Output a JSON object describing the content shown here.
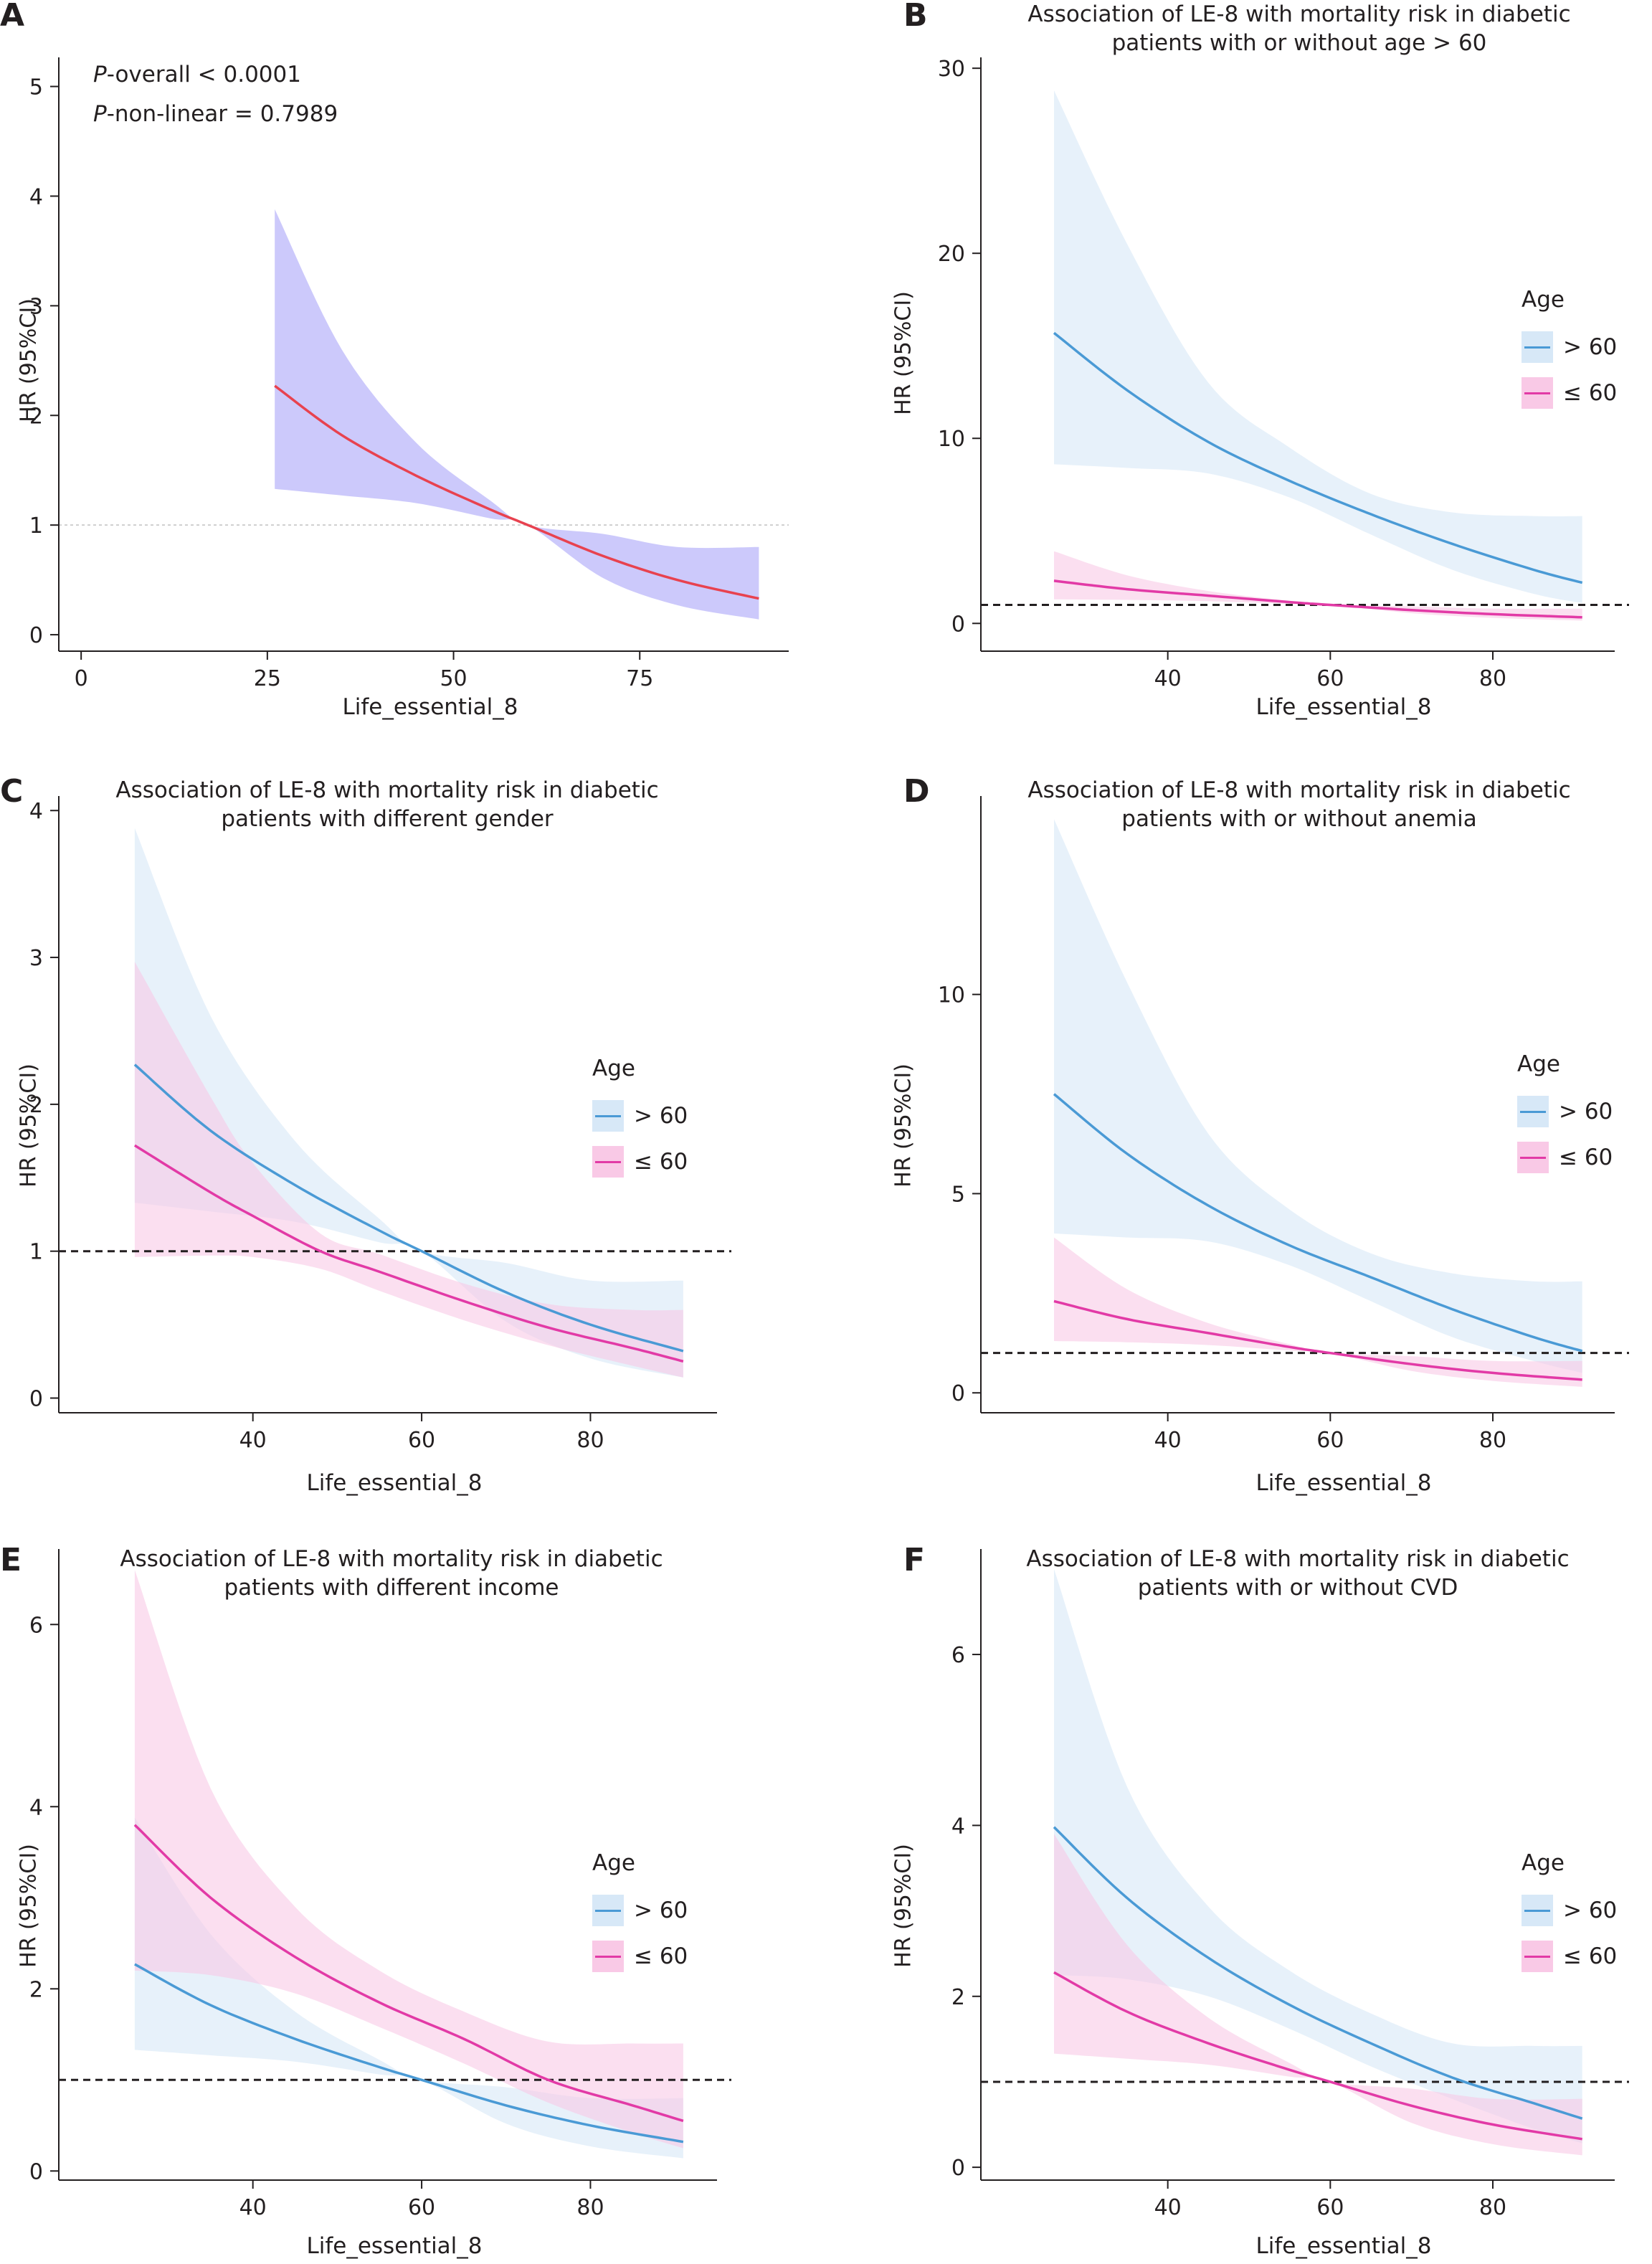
{
  "colors": {
    "red_line": "#e8424f",
    "purple_band": "#c9c6fb",
    "blue_line": "#4a9ad5",
    "blue_band": "#d7e8f7",
    "pink_line": "#e23aa6",
    "pink_band": "#f9c9e6",
    "axis": "#231f20",
    "refline_dotted": "#cfcfcf"
  },
  "panels": [
    {
      "letter": "A",
      "title": "",
      "xlabel": "Life_essential_8",
      "ylabel": "HR (95%CI)",
      "pvalues": [
        {
          "italic": "P",
          "rest": "-overall < 0.0001"
        },
        {
          "italic": "P",
          "rest": "-non-linear = 0.7989"
        }
      ]
    },
    {
      "letter": "B",
      "title": "Association of LE-8 with mortality risk in diabetic\npatients with or without age > 60",
      "xlabel": "Life_essential_8",
      "ylabel": "HR (95%CI)",
      "legend": {
        "title": "Age",
        "items": [
          "> 60",
          "≤ 60"
        ]
      }
    },
    {
      "letter": "C",
      "title": "Association of LE-8 with mortality risk in diabetic\npatients with different gender",
      "xlabel": "Life_essential_8",
      "ylabel": "HR (95%CI)",
      "legend": {
        "title": "Age",
        "items": [
          "> 60",
          "≤ 60"
        ]
      }
    },
    {
      "letter": "D",
      "title": "Association of LE-8 with mortality risk in diabetic\npatients with or without anemia",
      "xlabel": "Life_essential_8",
      "ylabel": "HR (95%CI)",
      "legend": {
        "title": "Age",
        "items": [
          "> 60",
          "≤ 60"
        ]
      }
    },
    {
      "letter": "E",
      "title": "Association of LE-8 with mortality risk in diabetic\npatients with different income",
      "xlabel": "Life_essential_8",
      "ylabel": "HR (95%CI)",
      "legend": {
        "title": "Age",
        "items": [
          "> 60",
          "≤ 60"
        ]
      }
    },
    {
      "letter": "F",
      "title": "Association of LE-8 with mortality risk in diabetic\npatients with or without CVD",
      "xlabel": "Life_essential_8",
      "ylabel": "HR (95%CI)",
      "legend": {
        "title": "Age",
        "items": [
          "> 60",
          "≤ 60"
        ]
      }
    }
  ],
  "chart_data": [
    {
      "panel": "A",
      "type": "line",
      "xlabel": "Life_essential_8",
      "ylabel": "HR (95%CI)",
      "xlim": [
        -3,
        95
      ],
      "ylim": [
        -0.15,
        5.2
      ],
      "xticks": [
        0,
        25,
        50,
        75
      ],
      "yticks": [
        0,
        1,
        2,
        3,
        4,
        5
      ],
      "reference_line": 1,
      "reference_style": "dotted",
      "series": [
        {
          "color": "#e8424f",
          "band_color": "#c9c6fb",
          "x": [
            26,
            35,
            45,
            55,
            60,
            70,
            80,
            91
          ],
          "y": [
            2.27,
            1.82,
            1.45,
            1.14,
            1.0,
            0.72,
            0.5,
            0.33
          ],
          "lo": [
            1.33,
            1.27,
            1.2,
            1.06,
            1.0,
            0.52,
            0.27,
            0.14
          ],
          "hi": [
            3.88,
            2.6,
            1.75,
            1.22,
            1.0,
            0.92,
            0.8,
            0.8
          ]
        }
      ]
    },
    {
      "panel": "B",
      "type": "line",
      "xlabel": "Life_essential_8",
      "ylabel": "HR (95%CI)",
      "xlim": [
        17,
        95
      ],
      "ylim": [
        -1.5,
        30.2
      ],
      "xticks": [
        40,
        60,
        80
      ],
      "yticks": [
        0,
        10,
        20,
        30
      ],
      "reference_line": 1,
      "reference_style": "dashed",
      "legend": {
        "title": "Age",
        "items": [
          "> 60",
          "≤ 60"
        ],
        "position": "right"
      },
      "series": [
        {
          "name": "> 60",
          "color": "#4a9ad5",
          "band_color": "#d7e8f7",
          "x": [
            26,
            35,
            45,
            55,
            65,
            75,
            85,
            91
          ],
          "y": [
            15.7,
            12.6,
            9.8,
            7.7,
            5.9,
            4.3,
            2.9,
            2.2
          ],
          "lo": [
            8.6,
            8.4,
            8.1,
            6.8,
            4.8,
            2.9,
            1.6,
            1.1
          ],
          "hi": [
            28.8,
            20.5,
            13.0,
            9.5,
            7.0,
            6.0,
            5.8,
            5.8
          ]
        },
        {
          "name": "≤ 60",
          "color": "#e23aa6",
          "band_color": "#f9c9e6",
          "x": [
            26,
            35,
            45,
            55,
            60,
            70,
            80,
            91
          ],
          "y": [
            2.3,
            1.85,
            1.5,
            1.15,
            1.0,
            0.72,
            0.5,
            0.33
          ],
          "lo": [
            1.3,
            1.27,
            1.2,
            1.06,
            1.0,
            0.55,
            0.3,
            0.15
          ],
          "hi": [
            3.9,
            2.6,
            1.75,
            1.22,
            1.0,
            0.92,
            0.8,
            0.8
          ]
        }
      ]
    },
    {
      "panel": "C",
      "type": "line",
      "xlabel": "Life_essential_8",
      "ylabel": "HR (95%CI)",
      "xlim": [
        17,
        95
      ],
      "ylim": [
        -0.1,
        4.05
      ],
      "xticks": [
        40,
        60,
        80
      ],
      "yticks": [
        0,
        1,
        2,
        3,
        4
      ],
      "reference_line": 1,
      "reference_style": "dashed",
      "legend": {
        "title": "Age",
        "items": [
          "> 60",
          "≤ 60"
        ],
        "position": "right"
      },
      "series": [
        {
          "name": "> 60",
          "color": "#4a9ad5",
          "band_color": "#d7e8f7",
          "x": [
            26,
            35,
            45,
            55,
            60,
            70,
            80,
            91
          ],
          "y": [
            2.27,
            1.82,
            1.45,
            1.14,
            1.0,
            0.72,
            0.5,
            0.32
          ],
          "lo": [
            1.33,
            1.27,
            1.2,
            1.06,
            1.0,
            0.52,
            0.27,
            0.14
          ],
          "hi": [
            3.88,
            2.6,
            1.75,
            1.22,
            1.0,
            0.92,
            0.8,
            0.8
          ]
        },
        {
          "name": "≤ 60",
          "color": "#e23aa6",
          "band_color": "#f9c9e6",
          "x": [
            26,
            35,
            40,
            48,
            55,
            65,
            75,
            85,
            91
          ],
          "y": [
            1.72,
            1.4,
            1.24,
            1.0,
            0.86,
            0.66,
            0.48,
            0.34,
            0.25
          ],
          "lo": [
            0.96,
            0.97,
            0.96,
            0.88,
            0.73,
            0.53,
            0.36,
            0.22,
            0.14
          ],
          "hi": [
            2.97,
            2.05,
            1.6,
            1.12,
            0.98,
            0.78,
            0.64,
            0.6,
            0.6
          ]
        }
      ]
    },
    {
      "panel": "D",
      "type": "line",
      "xlabel": "Life_essential_8",
      "ylabel": "HR (95%CI)",
      "xlim": [
        17,
        95
      ],
      "ylim": [
        -0.5,
        14.8
      ],
      "xticks": [
        40,
        60,
        80
      ],
      "yticks": [
        0,
        5,
        10
      ],
      "reference_line": 1,
      "reference_style": "dashed",
      "legend": {
        "title": "Age",
        "items": [
          "> 60",
          "≤ 60"
        ],
        "position": "right"
      },
      "series": [
        {
          "name": "> 60",
          "color": "#4a9ad5",
          "band_color": "#d7e8f7",
          "x": [
            26,
            35,
            45,
            55,
            65,
            75,
            85,
            91
          ],
          "y": [
            7.5,
            6.0,
            4.7,
            3.7,
            2.9,
            2.1,
            1.4,
            1.05
          ],
          "lo": [
            4.0,
            3.9,
            3.8,
            3.2,
            2.3,
            1.4,
            0.8,
            0.5
          ],
          "hi": [
            14.4,
            10.3,
            6.5,
            4.6,
            3.5,
            3.0,
            2.8,
            2.8
          ]
        },
        {
          "name": "≤ 60",
          "color": "#e23aa6",
          "band_color": "#f9c9e6",
          "x": [
            26,
            35,
            45,
            55,
            60,
            70,
            80,
            91
          ],
          "y": [
            2.3,
            1.85,
            1.5,
            1.15,
            1.0,
            0.72,
            0.5,
            0.33
          ],
          "lo": [
            1.3,
            1.27,
            1.2,
            1.06,
            1.0,
            0.55,
            0.3,
            0.15
          ],
          "hi": [
            3.9,
            2.6,
            1.75,
            1.22,
            1.0,
            0.92,
            0.8,
            0.8
          ]
        }
      ]
    },
    {
      "panel": "E",
      "type": "line",
      "xlabel": "Life_essential_8",
      "ylabel": "HR (95%CI)",
      "xlim": [
        17,
        95
      ],
      "ylim": [
        -0.1,
        6.75
      ],
      "xticks": [
        40,
        60,
        80
      ],
      "yticks": [
        0,
        2,
        4,
        6
      ],
      "reference_line": 1,
      "reference_style": "dashed",
      "legend": {
        "title": "Age",
        "items": [
          "> 60",
          "≤ 60"
        ],
        "position": "right"
      },
      "series": [
        {
          "name": "> 60",
          "color": "#4a9ad5",
          "band_color": "#d7e8f7",
          "x": [
            26,
            35,
            45,
            55,
            60,
            70,
            80,
            91
          ],
          "y": [
            2.27,
            1.82,
            1.45,
            1.14,
            1.0,
            0.72,
            0.5,
            0.32
          ],
          "lo": [
            1.33,
            1.27,
            1.2,
            1.06,
            1.0,
            0.52,
            0.27,
            0.14
          ],
          "hi": [
            3.88,
            2.6,
            1.75,
            1.22,
            1.0,
            0.92,
            0.8,
            0.8
          ]
        },
        {
          "name": "≤ 60",
          "color": "#e23aa6",
          "band_color": "#f9c9e6",
          "x": [
            26,
            35,
            45,
            55,
            65,
            75,
            85,
            91
          ],
          "y": [
            3.8,
            3.0,
            2.35,
            1.85,
            1.45,
            1.0,
            0.72,
            0.55
          ],
          "lo": [
            2.2,
            2.15,
            1.95,
            1.58,
            1.18,
            0.75,
            0.42,
            0.25
          ],
          "hi": [
            6.6,
            4.2,
            2.9,
            2.2,
            1.75,
            1.42,
            1.4,
            1.4
          ]
        }
      ]
    },
    {
      "panel": "F",
      "type": "line",
      "xlabel": "Life_essential_8",
      "ylabel": "HR (95%CI)",
      "xlim": [
        17,
        95
      ],
      "ylim": [
        -0.15,
        7.15
      ],
      "xticks": [
        40,
        60,
        80
      ],
      "yticks": [
        0,
        2,
        4,
        6
      ],
      "reference_line": 1,
      "reference_style": "dashed",
      "legend": {
        "title": "Age",
        "items": [
          "> 60",
          "≤ 60"
        ],
        "position": "right"
      },
      "series": [
        {
          "name": "> 60",
          "color": "#4a9ad5",
          "band_color": "#d7e8f7",
          "x": [
            26,
            35,
            45,
            55,
            65,
            75,
            85,
            91
          ],
          "y": [
            3.98,
            3.15,
            2.45,
            1.9,
            1.45,
            1.05,
            0.75,
            0.57
          ],
          "lo": [
            2.25,
            2.2,
            2.0,
            1.62,
            1.18,
            0.8,
            0.45,
            0.28
          ],
          "hi": [
            7.0,
            4.45,
            3.05,
            2.3,
            1.8,
            1.45,
            1.42,
            1.42
          ]
        },
        {
          "name": "≤ 60",
          "color": "#e23aa6",
          "band_color": "#f9c9e6",
          "x": [
            26,
            35,
            45,
            55,
            60,
            70,
            80,
            91
          ],
          "y": [
            2.28,
            1.82,
            1.45,
            1.14,
            1.0,
            0.72,
            0.5,
            0.33
          ],
          "lo": [
            1.33,
            1.27,
            1.2,
            1.06,
            1.0,
            0.52,
            0.27,
            0.14
          ],
          "hi": [
            3.9,
            2.6,
            1.75,
            1.22,
            1.0,
            0.92,
            0.8,
            0.8
          ]
        }
      ]
    }
  ]
}
